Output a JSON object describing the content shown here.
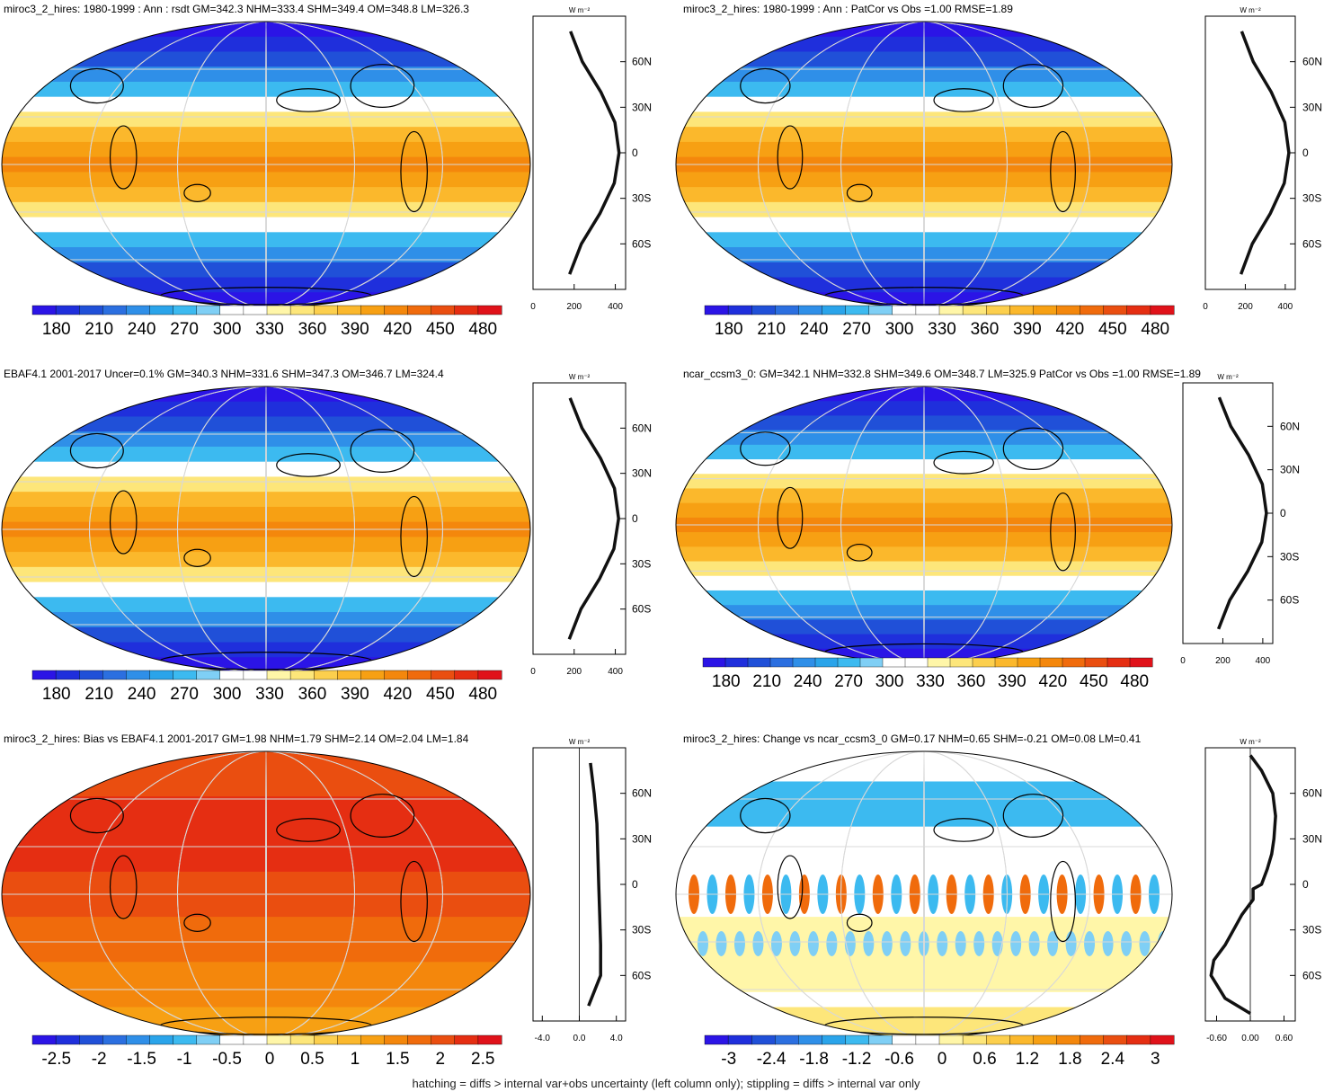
{
  "footer": "hatching = diffs > internal var+obs uncertainty (left column only); stippling = diffs > internal var only",
  "palette": [
    "#2b14e6",
    "#1f2fdc",
    "#2050d8",
    "#2b6fe0",
    "#2f8fe8",
    "#2aa4ea",
    "#3cbaf0",
    "#7fcff5",
    "#ffffff",
    "#ffffff",
    "#fff6a8",
    "#fde67a",
    "#fccf4d",
    "#fbb82c",
    "#f7a013",
    "#f4870c",
    "#f06b0c",
    "#ea4e10",
    "#e52e12",
    "#e0121a"
  ],
  "chart_data": [
    {
      "id": "p1",
      "type": "contour-map",
      "title": "miroc3_2_hires: 1980-1999 : Ann : rsdt GM=342.3 NHM=333.4 SHM=349.4 OM=348.8 LM=326.3",
      "units": "W m⁻²",
      "colorbar": {
        "labels": [
          "180",
          "210",
          "240",
          "270",
          "300",
          "330",
          "360",
          "390",
          "420",
          "450",
          "480"
        ],
        "range": [
          165,
          495
        ]
      },
      "profile": {
        "type": "line",
        "xlim": [
          0,
          450
        ],
        "xticks": [
          "0",
          "200",
          "400"
        ],
        "lat_labels": [
          "60N",
          "30N",
          "0",
          "30S",
          "60S"
        ],
        "lat": [
          -80,
          -60,
          -40,
          -20,
          0,
          20,
          40,
          60,
          80
        ],
        "value": [
          178,
          235,
          325,
          395,
          418,
          398,
          330,
          240,
          182
        ],
        "color": "#111111"
      }
    },
    {
      "id": "p2",
      "type": "contour-map",
      "title": "miroc3_2_hires: 1980-1999 : Ann : PatCor vs Obs =1.00 RMSE=1.89",
      "units": "W m⁻²",
      "colorbar": {
        "labels": [
          "180",
          "210",
          "240",
          "270",
          "300",
          "330",
          "360",
          "390",
          "420",
          "450",
          "480"
        ],
        "range": [
          165,
          495
        ]
      },
      "profile": {
        "type": "line",
        "xlim": [
          0,
          450
        ],
        "xticks": [
          "0",
          "200",
          "400"
        ],
        "lat_labels": [
          "60N",
          "30N",
          "0",
          "30S",
          "60S"
        ],
        "lat": [
          -80,
          -60,
          -40,
          -20,
          0,
          20,
          40,
          60,
          80
        ],
        "value": [
          178,
          235,
          325,
          395,
          418,
          398,
          330,
          240,
          182
        ],
        "color": "#111111"
      }
    },
    {
      "id": "p3",
      "type": "contour-map",
      "title": "EBAF4.1 2001-2017 Uncer=0.1% GM=340.3 NHM=331.6 SHM=347.3 OM=346.7 LM=324.4",
      "units": "W m⁻²",
      "colorbar": {
        "labels": [
          "180",
          "210",
          "240",
          "270",
          "300",
          "330",
          "360",
          "390",
          "420",
          "450",
          "480"
        ],
        "range": [
          165,
          495
        ]
      },
      "profile": {
        "type": "line",
        "xlim": [
          0,
          450
        ],
        "xticks": [
          "0",
          "200",
          "400"
        ],
        "lat_labels": [
          "60N",
          "30N",
          "0",
          "30S",
          "60S"
        ],
        "lat": [
          -80,
          -60,
          -40,
          -20,
          0,
          20,
          40,
          60,
          80
        ],
        "value": [
          176,
          233,
          323,
          393,
          416,
          396,
          328,
          238,
          180
        ],
        "color": "#111111"
      }
    },
    {
      "id": "p4",
      "type": "contour-map",
      "title": "ncar_ccsm3_0: GM=342.1 NHM=332.8 SHM=349.6 OM=348.7 LM=325.9 PatCor vs Obs =1.00 RMSE=1.89",
      "units": "W m⁻²",
      "colorbar": {
        "labels": [
          "180",
          "210",
          "240",
          "270",
          "300",
          "330",
          "360",
          "390",
          "420",
          "450",
          "480"
        ],
        "range": [
          165,
          495
        ]
      },
      "profile": {
        "type": "line",
        "xlim": [
          0,
          450
        ],
        "xticks": [
          "0",
          "200",
          "400"
        ],
        "lat_labels": [
          "60N",
          "30N",
          "0",
          "30S",
          "60S"
        ],
        "lat": [
          -80,
          -60,
          -40,
          -20,
          0,
          20,
          40,
          60,
          80
        ],
        "value": [
          178,
          235,
          325,
          395,
          418,
          398,
          330,
          240,
          182
        ],
        "color": "#111111"
      }
    },
    {
      "id": "p5",
      "type": "contour-map",
      "title": "miroc3_2_hires: Bias vs EBAF4.1 2001-2017 GM=1.98 NHM=1.79 SHM=2.14 OM=2.04 LM=1.84",
      "units": "W m⁻²",
      "colorbar": {
        "labels": [
          "-2.5",
          "-2",
          "-1.5",
          "-1",
          "-0.5",
          "0",
          "0.5",
          "1",
          "1.5",
          "2",
          "2.5"
        ],
        "range": [
          -2.75,
          2.75
        ]
      },
      "profile": {
        "type": "line",
        "xlim": [
          -5,
          5
        ],
        "xticks": [
          "-4.0",
          "0.0",
          "4.0"
        ],
        "lat_labels": [
          "60N",
          "30N",
          "0",
          "30S",
          "60S"
        ],
        "lat": [
          -80,
          -60,
          -40,
          -20,
          0,
          20,
          40,
          60,
          80
        ],
        "value": [
          1.0,
          2.3,
          2.3,
          2.2,
          2.1,
          2.0,
          1.9,
          1.6,
          1.2
        ],
        "color": "#111111"
      }
    },
    {
      "id": "p6",
      "type": "contour-map",
      "title": "miroc3_2_hires: Change vs ncar_ccsm3_0 GM=0.17 NHM=0.65 SHM=-0.21 OM=0.08 LM=0.41",
      "units": "W m⁻²",
      "colorbar": {
        "labels": [
          "-3",
          "-2.4",
          "-1.8",
          "-1.2",
          "-0.6",
          "0",
          "0.6",
          "1.2",
          "1.8",
          "2.4",
          "3"
        ],
        "range": [
          -3.3,
          3.3
        ]
      },
      "profile": {
        "type": "line",
        "xlim": [
          -0.8,
          0.8
        ],
        "xticks": [
          "-0.60",
          "0.00",
          "0.60"
        ],
        "lat_labels": [
          "60N",
          "30N",
          "0",
          "30S",
          "60S"
        ],
        "lat": [
          -85,
          -75,
          -60,
          -50,
          -40,
          -30,
          -20,
          -10,
          -3,
          0,
          10,
          20,
          30,
          45,
          60,
          75,
          85
        ],
        "value": [
          0.0,
          -0.45,
          -0.7,
          -0.65,
          -0.45,
          -0.3,
          -0.15,
          0.05,
          0.05,
          0.2,
          0.3,
          0.38,
          0.42,
          0.45,
          0.4,
          0.2,
          0.0
        ],
        "color": "#111111"
      }
    }
  ]
}
